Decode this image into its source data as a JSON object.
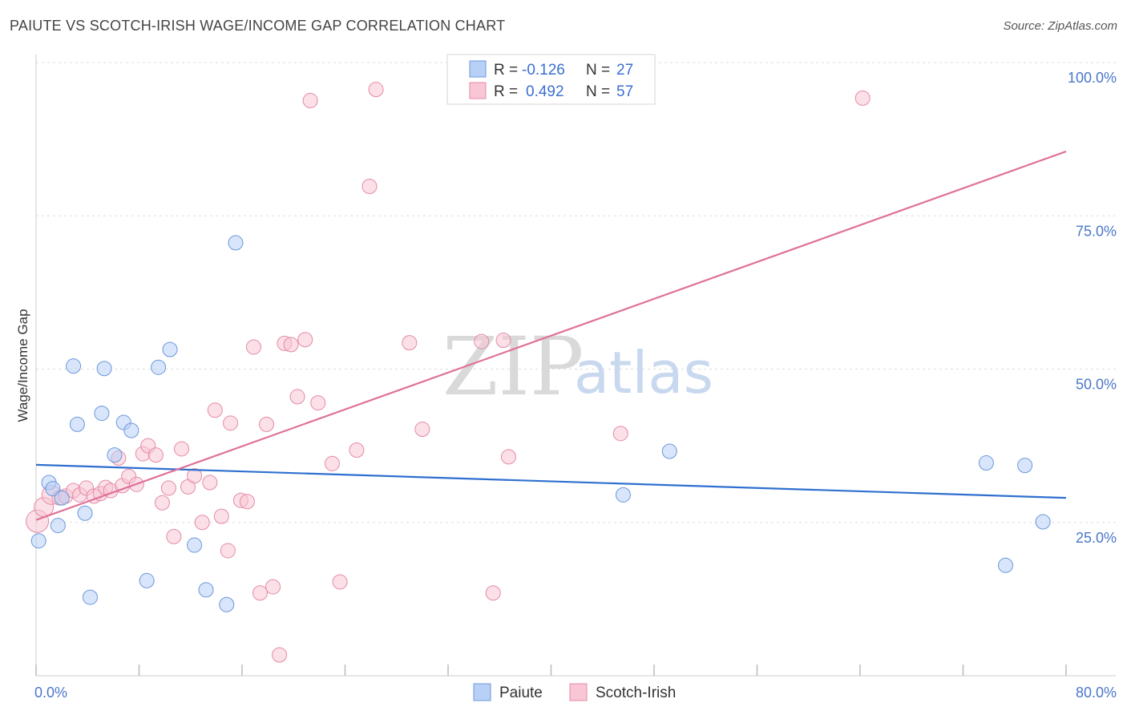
{
  "title": "PAIUTE VS SCOTCH-IRISH WAGE/INCOME GAP CORRELATION CHART",
  "source": "Source: ZipAtlas.com",
  "watermark": {
    "zip": "ZIP",
    "atlas": "atlas"
  },
  "colors": {
    "paiute_fill": "#b8d0f5",
    "paiute_stroke": "#6b98dc",
    "paiute_line": "#2f6fcf",
    "scotch_fill": "#f8c6d4",
    "scotch_stroke": "#e58aa6",
    "scotch_line": "#e0719a",
    "tick_text": "#4a77c9",
    "grid": "#dddddd"
  },
  "legend": {
    "rows": [
      {
        "r_label": "R =",
        "r_value": "-0.126",
        "n_label": "N =",
        "n_value": "27"
      },
      {
        "r_label": "R =",
        "r_value": "0.492",
        "n_label": "N =",
        "n_value": "57"
      }
    ]
  },
  "chart_data": {
    "type": "scatter",
    "title": "PAIUTE VS SCOTCH-IRISH WAGE/INCOME GAP CORRELATION CHART",
    "xlabel": "",
    "ylabel": "Wage/Income Gap",
    "xlim": [
      0,
      80
    ],
    "ylim": [
      0,
      100
    ],
    "x_tick_labels": [
      "0.0%",
      "80.0%"
    ],
    "y_tick_labels": [
      "100.0%",
      "75.0%",
      "50.0%",
      "25.0%"
    ],
    "y_tick_values": [
      100,
      75,
      50,
      25
    ],
    "series": [
      {
        "name": "Paiute",
        "trend": {
          "x": [
            0,
            80
          ],
          "y": [
            34.4,
            29.0
          ]
        },
        "points": [
          [
            0.2,
            22.0
          ],
          [
            1.0,
            31.5
          ],
          [
            1.3,
            30.5
          ],
          [
            1.7,
            24.5
          ],
          [
            2.0,
            29.0
          ],
          [
            2.9,
            50.5
          ],
          [
            3.2,
            41.0
          ],
          [
            3.8,
            26.5
          ],
          [
            4.2,
            12.8
          ],
          [
            5.1,
            42.8
          ],
          [
            5.3,
            50.1
          ],
          [
            6.1,
            36.0
          ],
          [
            6.8,
            41.3
          ],
          [
            7.4,
            40.0
          ],
          [
            8.6,
            15.5
          ],
          [
            9.5,
            50.3
          ],
          [
            10.4,
            53.2
          ],
          [
            12.3,
            21.3
          ],
          [
            13.2,
            14.0
          ],
          [
            14.8,
            11.6
          ],
          [
            15.5,
            70.6
          ],
          [
            45.6,
            29.5
          ],
          [
            49.2,
            36.6
          ],
          [
            73.8,
            34.7
          ],
          [
            75.3,
            18.0
          ],
          [
            76.8,
            34.3
          ],
          [
            78.2,
            25.1
          ]
        ]
      },
      {
        "name": "Scotch-Irish",
        "trend": {
          "x": [
            0,
            80
          ],
          "y": [
            25.4,
            85.5
          ]
        },
        "points": [
          [
            0.1,
            25.2
          ],
          [
            0.6,
            27.5
          ],
          [
            1.2,
            29.5
          ],
          [
            1.8,
            29.0
          ],
          [
            2.3,
            29.3
          ],
          [
            2.9,
            30.2
          ],
          [
            3.4,
            29.5
          ],
          [
            3.9,
            30.6
          ],
          [
            4.5,
            29.3
          ],
          [
            5.0,
            29.7
          ],
          [
            5.4,
            30.7
          ],
          [
            5.8,
            30.2
          ],
          [
            6.4,
            35.5
          ],
          [
            6.7,
            31.0
          ],
          [
            7.2,
            32.5
          ],
          [
            7.8,
            31.2
          ],
          [
            8.3,
            36.2
          ],
          [
            8.7,
            37.5
          ],
          [
            9.3,
            36.0
          ],
          [
            9.8,
            28.2
          ],
          [
            10.3,
            30.6
          ],
          [
            10.7,
            22.7
          ],
          [
            11.3,
            37.0
          ],
          [
            11.8,
            30.8
          ],
          [
            12.3,
            32.6
          ],
          [
            12.9,
            25.0
          ],
          [
            13.5,
            31.5
          ],
          [
            13.9,
            43.3
          ],
          [
            14.4,
            26.0
          ],
          [
            14.9,
            20.4
          ],
          [
            15.1,
            41.2
          ],
          [
            15.9,
            28.6
          ],
          [
            16.4,
            28.4
          ],
          [
            16.9,
            53.6
          ],
          [
            17.4,
            13.5
          ],
          [
            17.9,
            41.0
          ],
          [
            18.4,
            14.5
          ],
          [
            18.9,
            3.4
          ],
          [
            19.3,
            54.2
          ],
          [
            19.8,
            54.0
          ],
          [
            20.3,
            45.5
          ],
          [
            20.9,
            54.8
          ],
          [
            21.3,
            93.8
          ],
          [
            21.9,
            44.5
          ],
          [
            23.0,
            34.6
          ],
          [
            23.6,
            15.3
          ],
          [
            24.9,
            36.8
          ],
          [
            25.9,
            79.8
          ],
          [
            26.4,
            95.6
          ],
          [
            29.0,
            54.3
          ],
          [
            30.0,
            40.2
          ],
          [
            34.6,
            54.5
          ],
          [
            35.5,
            13.5
          ],
          [
            36.3,
            54.7
          ],
          [
            36.7,
            35.7
          ],
          [
            45.4,
            39.5
          ],
          [
            64.2,
            94.2
          ]
        ]
      }
    ]
  },
  "bottom_legend": [
    {
      "label": "Paiute"
    },
    {
      "label": "Scotch-Irish"
    }
  ]
}
